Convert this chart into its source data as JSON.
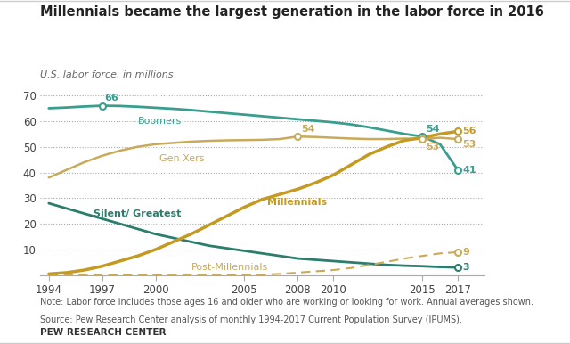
{
  "title": "Millennials became the largest generation in the labor force in 2016",
  "subtitle": "U.S. labor force, in millions",
  "note": "Note: Labor force includes those ages 16 and older who are working or looking for work. Annual averages shown.",
  "source": "Source: Pew Research Center analysis of monthly 1994-2017 Current Population Survey (IPUMS).",
  "footer": "PEW RESEARCH CENTER",
  "background_color": "#ffffff",
  "boomer_color": "#3a9e8f",
  "genx_color": "#c9aa5a",
  "millennial_color": "#c49a22",
  "silent_color": "#2b7d6e",
  "postmill_color": "#c9aa5a",
  "boomers_x": [
    1994,
    1995,
    1996,
    1997,
    1998,
    1999,
    2000,
    2001,
    2002,
    2003,
    2004,
    2005,
    2006,
    2007,
    2008,
    2009,
    2010,
    2011,
    2012,
    2013,
    2014,
    2015,
    2016,
    2017
  ],
  "boomers_y": [
    65.0,
    65.3,
    65.7,
    66.0,
    65.9,
    65.6,
    65.2,
    64.8,
    64.3,
    63.7,
    63.1,
    62.5,
    61.9,
    61.3,
    60.7,
    60.1,
    59.5,
    58.7,
    57.6,
    56.3,
    55.0,
    54.0,
    51.0,
    41.0
  ],
  "genx_x": [
    1994,
    1995,
    1996,
    1997,
    1998,
    1999,
    2000,
    2001,
    2002,
    2003,
    2004,
    2005,
    2006,
    2007,
    2008,
    2009,
    2010,
    2011,
    2012,
    2013,
    2014,
    2015,
    2016,
    2017
  ],
  "genx_y": [
    38.0,
    41.0,
    44.0,
    46.5,
    48.5,
    50.0,
    51.0,
    51.5,
    52.0,
    52.3,
    52.5,
    52.6,
    52.7,
    53.0,
    54.0,
    53.8,
    53.5,
    53.2,
    53.0,
    53.0,
    53.2,
    53.0,
    53.5,
    53.0
  ],
  "millennial_x": [
    1994,
    1995,
    1996,
    1997,
    1998,
    1999,
    2000,
    2001,
    2002,
    2003,
    2004,
    2005,
    2006,
    2007,
    2008,
    2009,
    2010,
    2011,
    2012,
    2013,
    2014,
    2015,
    2016,
    2017
  ],
  "millennial_y": [
    0.5,
    1.0,
    2.0,
    3.5,
    5.5,
    7.5,
    10.0,
    13.0,
    16.0,
    19.5,
    23.0,
    26.5,
    29.5,
    31.5,
    33.5,
    36.0,
    39.0,
    43.0,
    47.0,
    50.0,
    52.5,
    53.5,
    55.0,
    56.0
  ],
  "silent_x": [
    1994,
    1995,
    1996,
    1997,
    1998,
    1999,
    2000,
    2001,
    2002,
    2003,
    2004,
    2005,
    2006,
    2007,
    2008,
    2009,
    2010,
    2011,
    2012,
    2013,
    2014,
    2015,
    2016,
    2017
  ],
  "silent_y": [
    28.0,
    26.0,
    24.0,
    22.0,
    20.0,
    18.0,
    16.0,
    14.5,
    13.0,
    11.5,
    10.5,
    9.5,
    8.5,
    7.5,
    6.5,
    6.0,
    5.5,
    5.0,
    4.5,
    4.0,
    3.7,
    3.5,
    3.2,
    3.0
  ],
  "postmill_x": [
    1994,
    1995,
    1996,
    1997,
    1998,
    1999,
    2000,
    2001,
    2002,
    2003,
    2004,
    2005,
    2006,
    2007,
    2008,
    2009,
    2010,
    2011,
    2012,
    2013,
    2014,
    2015,
    2016,
    2017
  ],
  "postmill_y": [
    0.0,
    0.0,
    0.0,
    0.0,
    0.0,
    0.0,
    0.0,
    0.0,
    0.0,
    0.0,
    0.0,
    0.0,
    0.2,
    0.5,
    1.0,
    1.5,
    2.0,
    2.8,
    4.0,
    5.2,
    6.5,
    7.5,
    8.5,
    9.0
  ],
  "xlim": [
    1993.5,
    2018.5
  ],
  "ylim": [
    0,
    75
  ],
  "yticks": [
    10,
    20,
    30,
    40,
    50,
    60,
    70
  ],
  "xticks": [
    1994,
    1997,
    2000,
    2005,
    2008,
    2010,
    2015,
    2017
  ]
}
